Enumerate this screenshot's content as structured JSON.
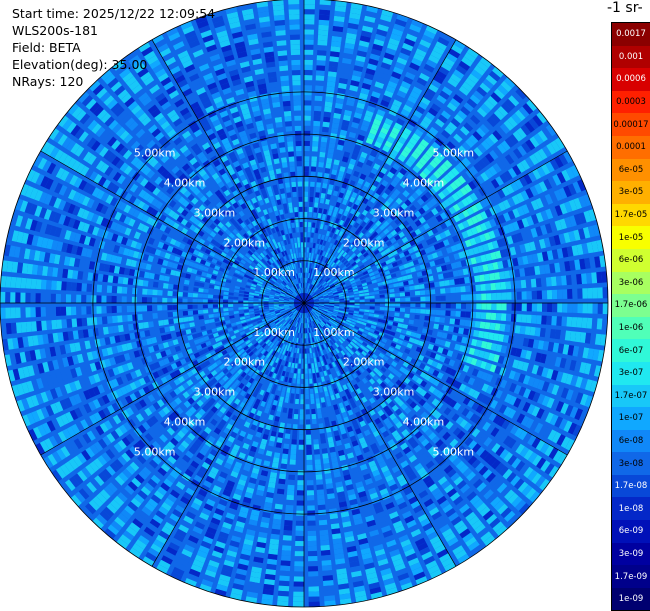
{
  "info": {
    "start_time": "Start time: 2025/12/22 12:09:54",
    "device": "WLS200s-181",
    "field": "Field: BETA",
    "elevation": "Elevation(deg): 35.00",
    "nrays": "NRays: 120"
  },
  "colorbar": {
    "title": "-1 sr-",
    "entries": [
      {
        "label": "0.0017",
        "color": "#8b0000"
      },
      {
        "label": "0.001",
        "color": "#b00000"
      },
      {
        "label": "0.0006",
        "color": "#d80000"
      },
      {
        "label": "0.0003",
        "color": "#ff2000"
      },
      {
        "label": "0.00017",
        "color": "#ff4a00"
      },
      {
        "label": "0.0001",
        "color": "#ff6e00"
      },
      {
        "label": "6e-05",
        "color": "#ff9000"
      },
      {
        "label": "3e-05",
        "color": "#ffb000"
      },
      {
        "label": "1.7e-05",
        "color": "#ffd800"
      },
      {
        "label": "1e-05",
        "color": "#f8ff00"
      },
      {
        "label": "6e-06",
        "color": "#d0ff30"
      },
      {
        "label": "3e-06",
        "color": "#a8ff60"
      },
      {
        "label": "1.7e-06",
        "color": "#7cff90"
      },
      {
        "label": "1e-06",
        "color": "#50ffb8"
      },
      {
        "label": "6e-07",
        "color": "#30f8d8"
      },
      {
        "label": "3e-07",
        "color": "#20e8f0"
      },
      {
        "label": "1.7e-07",
        "color": "#18c8f8"
      },
      {
        "label": "1e-07",
        "color": "#10a8ff"
      },
      {
        "label": "6e-08",
        "color": "#1088f8"
      },
      {
        "label": "3e-08",
        "color": "#1068e8"
      },
      {
        "label": "1.7e-08",
        "color": "#0848d8"
      },
      {
        "label": "1e-08",
        "color": "#0428c8"
      },
      {
        "label": "6e-09",
        "color": "#0010b8"
      },
      {
        "label": "3e-09",
        "color": "#0000a0"
      },
      {
        "label": "1.7e-09",
        "color": "#00008b"
      },
      {
        "label": "1e-09",
        "color": "#000070"
      }
    ]
  },
  "chart_data": {
    "type": "heatmap",
    "projection": "polar PPI scan",
    "field": "BETA",
    "nrays": 120,
    "range_rings": [
      {
        "label": "1.00km",
        "range_km": 1
      },
      {
        "label": "2.00km",
        "range_km": 2
      },
      {
        "label": "3.00km",
        "range_km": 3
      },
      {
        "label": "4.00km",
        "range_km": 4
      },
      {
        "label": "5.00km",
        "range_km": 5
      }
    ],
    "max_range_km": 7.2,
    "background_level": "3e-08",
    "enhanced_arc": {
      "azimuth_from_deg": 20,
      "azimuth_to_deg": 110,
      "range_km": 4.5,
      "level": "3e-07"
    }
  }
}
